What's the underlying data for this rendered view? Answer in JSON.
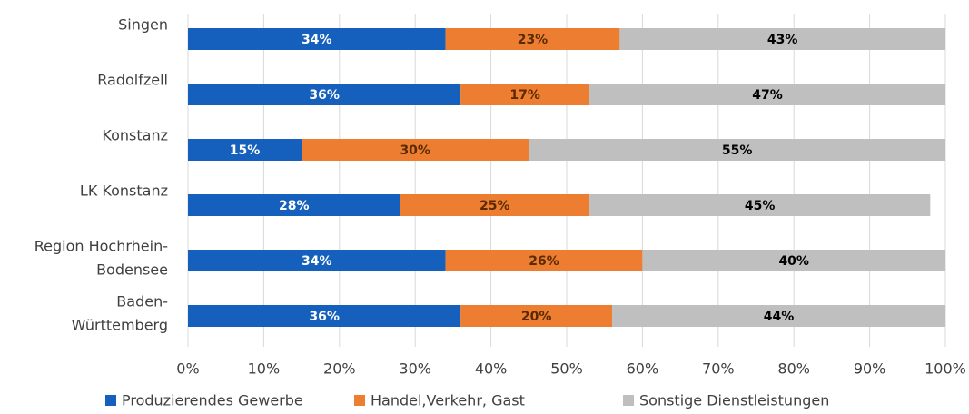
{
  "chart_data": {
    "type": "stacked_barh",
    "categories": [
      "Singen",
      "Radolfzell",
      "Konstanz",
      "LK Konstanz",
      [
        "Region Hochrhein-",
        "Bodensee"
      ],
      [
        "Baden-",
        "Württemberg"
      ]
    ],
    "series": [
      {
        "name": "Produzierendes Gewerbe",
        "color": "#1560bd",
        "label_color": "#ffffff",
        "values": [
          34,
          36,
          15,
          28,
          34,
          36
        ],
        "value_labels": [
          "34%",
          "36%",
          "15%",
          "28%",
          "34%",
          "36%"
        ]
      },
      {
        "name": "Handel,Verkehr, Gast",
        "color": "#ed7d31",
        "label_color": "#5a2a00",
        "values": [
          23,
          17,
          30,
          25,
          26,
          20
        ],
        "value_labels": [
          "23%",
          "17%",
          "30%",
          "25%",
          "26%",
          "20%"
        ]
      },
      {
        "name": "Sonstige Dienstleistungen",
        "color": "#bfbfbf",
        "label_color": "#000000",
        "values": [
          43,
          47,
          55,
          45,
          40,
          44
        ],
        "value_labels": [
          "43%",
          "47%",
          "55%",
          "45%",
          "40%",
          "44%"
        ]
      }
    ],
    "xlim": [
      0,
      100
    ],
    "xticks": [
      {
        "value": 0,
        "label": "0%"
      },
      {
        "value": 10,
        "label": "10%"
      },
      {
        "value": 20,
        "label": "20%"
      },
      {
        "value": 30,
        "label": "30%"
      },
      {
        "value": 40,
        "label": "40%"
      },
      {
        "value": 50,
        "label": "50%"
      },
      {
        "value": 60,
        "label": "60%"
      },
      {
        "value": 70,
        "label": "70%"
      },
      {
        "value": 80,
        "label": "80%"
      },
      {
        "value": 90,
        "label": "90%"
      },
      {
        "value": 100,
        "label": "100%"
      }
    ],
    "grid": true,
    "legend": "bottom"
  }
}
